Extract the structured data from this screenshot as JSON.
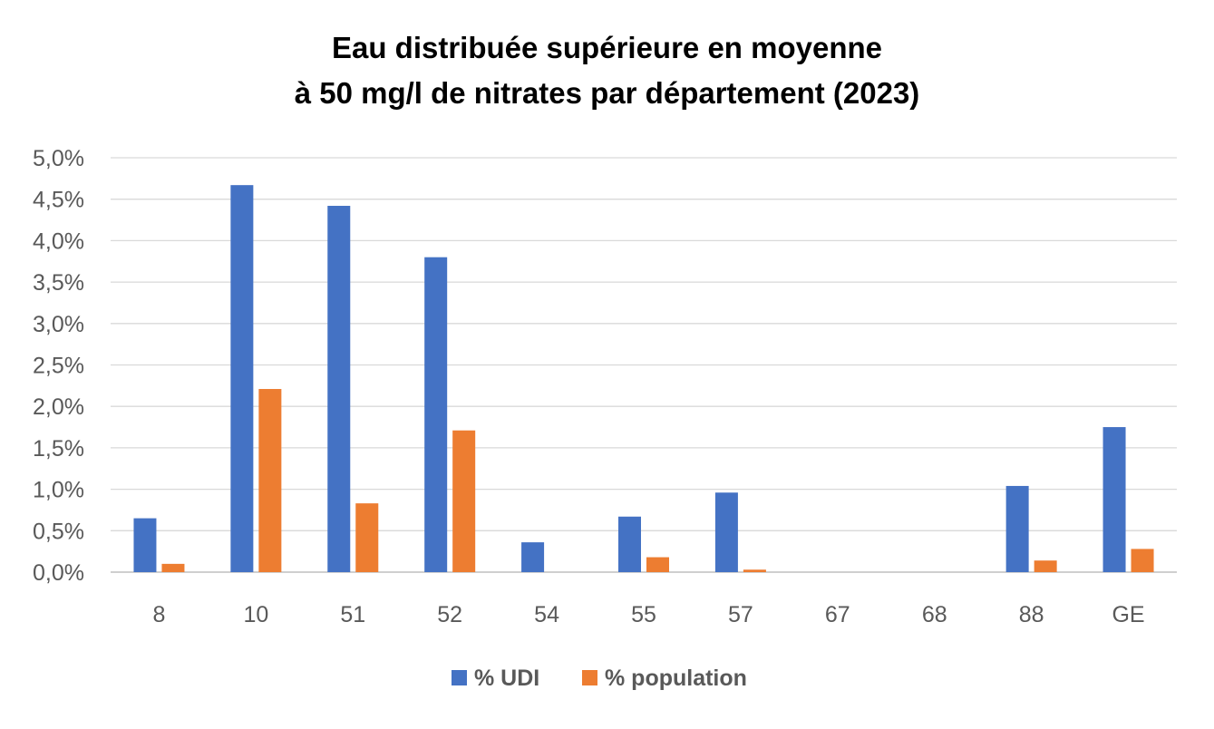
{
  "title_line1": "Eau distribuée supérieure en moyenne",
  "title_line2": "à 50 mg/l de nitrates par département (2023)",
  "colors": {
    "udi": "#4472C4",
    "population": "#ED7D31",
    "grid": "#D9D9D9",
    "axis": "#BFBFBF"
  },
  "chart_data": {
    "type": "bar",
    "title": "Eau distribuée supérieure en moyenne à 50 mg/l de nitrates par département (2023)",
    "categories": [
      "8",
      "10",
      "51",
      "52",
      "54",
      "55",
      "57",
      "67",
      "68",
      "88",
      "GE"
    ],
    "series": [
      {
        "name": "% UDI",
        "values": [
          0.65,
          4.67,
          4.42,
          3.8,
          0.36,
          0.67,
          0.96,
          0.0,
          0.0,
          1.04,
          1.75
        ]
      },
      {
        "name": "% population",
        "values": [
          0.1,
          2.21,
          0.83,
          1.71,
          0.0,
          0.18,
          0.03,
          0.0,
          0.0,
          0.14,
          0.28
        ]
      }
    ],
    "yticks": [
      "0,0%",
      "0,5%",
      "1,0%",
      "1,5%",
      "2,0%",
      "2,5%",
      "3,0%",
      "3,5%",
      "4,0%",
      "4,5%",
      "5,0%"
    ],
    "ylim": [
      0,
      5
    ],
    "grid": true,
    "legend": "bottom"
  }
}
